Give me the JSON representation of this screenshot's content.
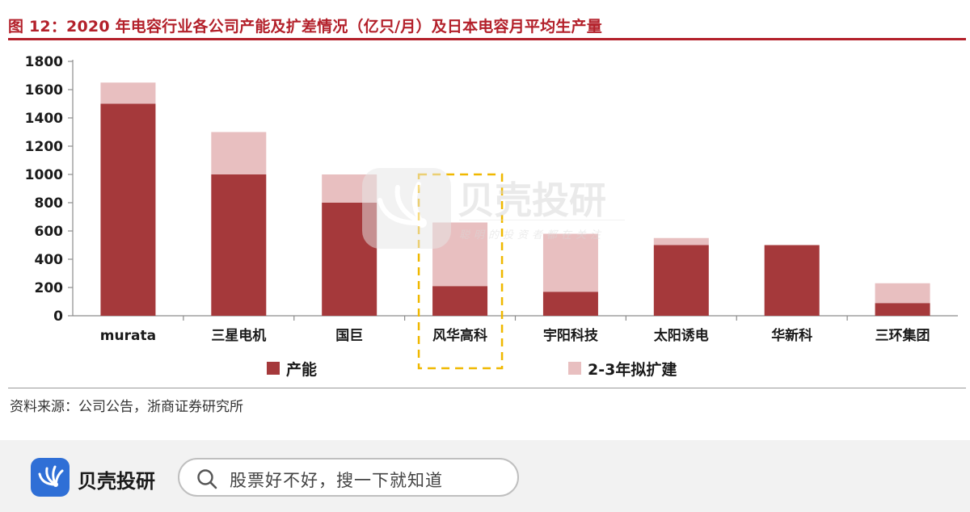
{
  "header": {
    "title": "图 12：2020 年电容行业各公司产能及扩差情况（亿只/月）及日本电容月平均生产量"
  },
  "source_note": "资料来源：公司公告，浙商证券研究所",
  "watermark": {
    "name": "贝壳投研",
    "slogan": "聪明的投资者都在关注"
  },
  "footer": {
    "app_name": "贝壳投研",
    "search_placeholder": "股票好不好，搜一下就知道"
  },
  "colors": {
    "capacity": "#a5393b",
    "expansion": "#e8bfc0",
    "title": "#b3202a",
    "highlight": "#f0b800",
    "brand_blue": "#2f6fd6"
  },
  "chart_data": {
    "type": "bar",
    "stacked": true,
    "categories": [
      "murata",
      "三星电机",
      "国巨",
      "风华高科",
      "宇阳科技",
      "太阳诱电",
      "华新科",
      "三环集团"
    ],
    "series": [
      {
        "name": "产能",
        "values": [
          1500,
          1000,
          800,
          210,
          170,
          500,
          500,
          90
        ]
      },
      {
        "name": "2-3年拟扩建",
        "values": [
          150,
          300,
          200,
          450,
          410,
          50,
          0,
          140
        ]
      }
    ],
    "yticks": [
      "0",
      "200",
      "400",
      "600",
      "800",
      "1000",
      "1200",
      "1400",
      "1600",
      "1800"
    ],
    "ylim": [
      0,
      1800
    ],
    "grid": false,
    "legend_position": "bottom",
    "highlighted_category": "风华高科"
  }
}
